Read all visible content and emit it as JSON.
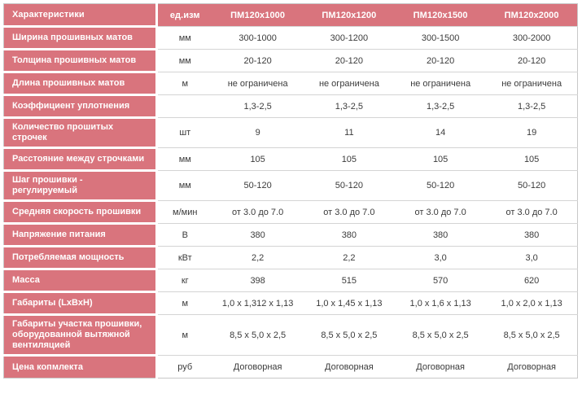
{
  "table": {
    "header": {
      "characteristics": "Характеристики",
      "unit": "ед.изм",
      "models": [
        "ПМ120х1000",
        "ПМ120х1200",
        "ПМ120х1500",
        "ПМ120х2000"
      ]
    },
    "rows": [
      {
        "label": "Ширина прошивных матов",
        "unit": "мм",
        "values": [
          "300-1000",
          "300-1200",
          "300-1500",
          "300-2000"
        ]
      },
      {
        "label": "Толщина прошивных матов",
        "unit": "мм",
        "values": [
          "20-120",
          "20-120",
          "20-120",
          "20-120"
        ]
      },
      {
        "label": "Длина прошивных матов",
        "unit": "м",
        "values": [
          "не ограничена",
          "не ограничена",
          "не ограничена",
          "не ограничена"
        ]
      },
      {
        "label": "Коэффициент уплотнения",
        "unit": "",
        "values": [
          "1,3-2,5",
          "1,3-2,5",
          "1,3-2,5",
          "1,3-2,5"
        ]
      },
      {
        "label": "Количество прошитых строчек",
        "unit": "шт",
        "values": [
          "9",
          "11",
          "14",
          "19"
        ]
      },
      {
        "label": "Расстояние между строчками",
        "unit": "мм",
        "values": [
          "105",
          "105",
          "105",
          "105"
        ]
      },
      {
        "label": "Шаг прошивки - регулируемый",
        "unit": "мм",
        "values": [
          "50-120",
          "50-120",
          "50-120",
          "50-120"
        ]
      },
      {
        "label": "Средняя скорость прошивки",
        "unit": "м/мин",
        "values": [
          "от 3.0 до 7.0",
          "от 3.0 до 7.0",
          "от 3.0 до 7.0",
          "от 3.0 до 7.0"
        ]
      },
      {
        "label": "Напряжение питания",
        "unit": "В",
        "values": [
          "380",
          "380",
          "380",
          "380"
        ]
      },
      {
        "label": "Потребляемая мощность",
        "unit": "кВт",
        "values": [
          "2,2",
          "2,2",
          "3,0",
          "3,0"
        ]
      },
      {
        "label": "Масса",
        "unit": "кг",
        "values": [
          "398",
          "515",
          "570",
          "620"
        ]
      },
      {
        "label": "Габариты (LxBxH)",
        "unit": "м",
        "values": [
          "1,0 x 1,312 x 1,13",
          "1,0 x 1,45 x 1,13",
          "1,0 x 1,6 x 1,13",
          "1,0 x 2,0 x 1,13"
        ]
      },
      {
        "label": "Габариты участка прошивки, оборудованной вытяжной вентиляцией",
        "unit": "м",
        "values": [
          "8,5 x 5,0 x 2,5",
          "8,5 x 5,0 x 2,5",
          "8,5 x 5,0 x 2,5",
          "8,5 x 5,0 x 2,5"
        ]
      },
      {
        "label": "Цена копмлекта",
        "unit": "руб",
        "values": [
          "Договорная",
          "Договорная",
          "Договорная",
          "Договорная"
        ]
      }
    ],
    "colors": {
      "accent_pink": "#d9747d",
      "row_separator": "#d4d4d4",
      "outer_border": "#c8c8c8",
      "data_text": "#3b3b3b",
      "header_text": "#ffffff"
    }
  }
}
